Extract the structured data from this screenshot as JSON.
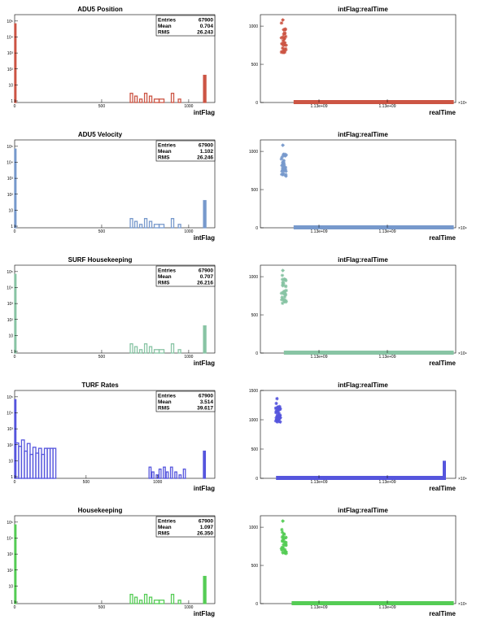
{
  "chart_data": [
    {
      "type": "histogram",
      "title": "ADU5 Position",
      "xlabel": "intFlag",
      "color": "#cc5544",
      "xlim": [
        0,
        1150
      ],
      "ylog": true,
      "xticks": [
        0,
        500,
        1000
      ],
      "yticks": [
        {
          "v": 1,
          "label": "1"
        },
        {
          "v": 10,
          "label": "10"
        },
        {
          "v": 100,
          "label": "10²"
        },
        {
          "v": 1000,
          "label": "10³"
        },
        {
          "v": 10000,
          "label": "10⁴"
        },
        {
          "v": 100000,
          "label": "10⁵"
        }
      ],
      "stats": {
        "entries_label": "Entries",
        "entries": "67900",
        "mean_label": "Mean",
        "mean": "0.704",
        "rms_label": "RMS",
        "rms": "26.243"
      },
      "bins": [
        {
          "x": 0,
          "w": 8,
          "v": 67000
        },
        {
          "x": 664,
          "w": 14,
          "v": 3
        },
        {
          "x": 690,
          "w": 14,
          "v": 2
        },
        {
          "x": 718,
          "w": 14,
          "v": 1.3
        },
        {
          "x": 746,
          "w": 14,
          "v": 3
        },
        {
          "x": 774,
          "w": 14,
          "v": 2
        },
        {
          "x": 802,
          "w": 28,
          "v": 1.3
        },
        {
          "x": 830,
          "w": 28,
          "v": 1.3
        },
        {
          "x": 900,
          "w": 14,
          "v": 3
        },
        {
          "x": 940,
          "w": 14,
          "v": 1.3
        },
        {
          "x": 1085,
          "w": 14,
          "v": 40
        }
      ],
      "filled": [
        0,
        1085
      ]
    },
    {
      "type": "scatter",
      "title": "intFlag:realTime",
      "xlabel": "realTime",
      "color": "#cc5544",
      "xlim": [
        0,
        1
      ],
      "ylim": [
        0,
        1150
      ],
      "yticks": [
        0,
        500,
        1000
      ],
      "xticks": [
        "1.13e+09",
        "1.13e+09"
      ],
      "exponent": "×10⁹",
      "cluster": {
        "x": 0.12,
        "ymin": 650,
        "ymax": 1080
      },
      "line": {
        "x0": 0.17,
        "x1": 0.99,
        "y": 0,
        "tail": false
      }
    },
    {
      "type": "histogram",
      "title": "ADU5 Velocity",
      "xlabel": "intFlag",
      "color": "#7799cc",
      "xlim": [
        0,
        1150
      ],
      "ylog": true,
      "xticks": [
        0,
        500,
        1000
      ],
      "yticks": [
        {
          "v": 1,
          "label": "1"
        },
        {
          "v": 10,
          "label": "10"
        },
        {
          "v": 100,
          "label": "10²"
        },
        {
          "v": 1000,
          "label": "10³"
        },
        {
          "v": 10000,
          "label": "10⁴"
        },
        {
          "v": 100000,
          "label": "10⁵"
        }
      ],
      "stats": {
        "entries_label": "Entries",
        "entries": "67900",
        "mean_label": "Mean",
        "mean": "1.102",
        "rms_label": "RMS",
        "rms": "26.246"
      },
      "bins": [
        {
          "x": 0,
          "w": 8,
          "v": 67000
        },
        {
          "x": 664,
          "w": 14,
          "v": 3
        },
        {
          "x": 690,
          "w": 14,
          "v": 2
        },
        {
          "x": 718,
          "w": 14,
          "v": 1.3
        },
        {
          "x": 746,
          "w": 14,
          "v": 3
        },
        {
          "x": 774,
          "w": 14,
          "v": 2
        },
        {
          "x": 802,
          "w": 28,
          "v": 1.3
        },
        {
          "x": 830,
          "w": 28,
          "v": 1.3
        },
        {
          "x": 900,
          "w": 14,
          "v": 3
        },
        {
          "x": 940,
          "w": 14,
          "v": 1.3
        },
        {
          "x": 1085,
          "w": 14,
          "v": 40
        }
      ],
      "filled": [
        0,
        1085
      ]
    },
    {
      "type": "scatter",
      "title": "intFlag:realTime",
      "xlabel": "realTime",
      "color": "#7799cc",
      "xlim": [
        0,
        1
      ],
      "ylim": [
        0,
        1150
      ],
      "yticks": [
        0,
        500,
        1000
      ],
      "xticks": [
        "1.13e+09",
        "1.13e+09"
      ],
      "exponent": "×10⁹",
      "cluster": {
        "x": 0.12,
        "ymin": 650,
        "ymax": 1080
      },
      "line": {
        "x0": 0.17,
        "x1": 0.99,
        "y": 0,
        "tail": false
      }
    },
    {
      "type": "histogram",
      "title": "SURF Housekeeping",
      "xlabel": "intFlag",
      "color": "#88c4a4",
      "xlim": [
        0,
        1150
      ],
      "ylog": true,
      "xticks": [
        0,
        500,
        1000
      ],
      "yticks": [
        {
          "v": 1,
          "label": "1"
        },
        {
          "v": 10,
          "label": "10"
        },
        {
          "v": 100,
          "label": "10²"
        },
        {
          "v": 1000,
          "label": "10³"
        },
        {
          "v": 10000,
          "label": "10⁴"
        },
        {
          "v": 100000,
          "label": "10⁵"
        }
      ],
      "stats": {
        "entries_label": "Entries",
        "entries": "67900",
        "mean_label": "Mean",
        "mean": "0.707",
        "rms_label": "RMS",
        "rms": "26.216"
      },
      "bins": [
        {
          "x": 0,
          "w": 8,
          "v": 67000
        },
        {
          "x": 664,
          "w": 14,
          "v": 3
        },
        {
          "x": 690,
          "w": 14,
          "v": 2
        },
        {
          "x": 718,
          "w": 14,
          "v": 1.3
        },
        {
          "x": 746,
          "w": 14,
          "v": 3
        },
        {
          "x": 774,
          "w": 14,
          "v": 2
        },
        {
          "x": 802,
          "w": 28,
          "v": 1.3
        },
        {
          "x": 830,
          "w": 28,
          "v": 1.3
        },
        {
          "x": 900,
          "w": 14,
          "v": 3
        },
        {
          "x": 940,
          "w": 14,
          "v": 1.3
        },
        {
          "x": 1085,
          "w": 14,
          "v": 40
        }
      ],
      "filled": [
        0,
        1085
      ]
    },
    {
      "type": "scatter",
      "title": "intFlag:realTime",
      "xlabel": "realTime",
      "color": "#88c4a4",
      "xlim": [
        0,
        1
      ],
      "ylim": [
        0,
        1150
      ],
      "yticks": [
        0,
        500,
        1000
      ],
      "xticks": [
        "1.13e+09",
        "1.13e+09"
      ],
      "exponent": "×10⁹",
      "cluster": {
        "x": 0.12,
        "ymin": 650,
        "ymax": 1080
      },
      "line": {
        "x0": 0.12,
        "x1": 0.99,
        "y": 0,
        "tail": false
      }
    },
    {
      "type": "histogram",
      "title": "TURF Rates",
      "xlabel": "intFlag",
      "color": "#5555dd",
      "xlim": [
        0,
        1400
      ],
      "ylog": true,
      "xticks": [
        0,
        500,
        1000
      ],
      "yticks": [
        {
          "v": 1,
          "label": "1"
        },
        {
          "v": 10,
          "label": "10"
        },
        {
          "v": 100,
          "label": "10²"
        },
        {
          "v": 1000,
          "label": "10³"
        },
        {
          "v": 10000,
          "label": "10⁴"
        },
        {
          "v": 100000,
          "label": "10⁵"
        }
      ],
      "stats": {
        "entries_label": "Entries",
        "entries": "67900",
        "mean_label": "Mean",
        "mean": "3.514",
        "rms_label": "RMS",
        "rms": "39.617"
      },
      "bins": [
        {
          "x": 0,
          "w": 8,
          "v": 67000
        },
        {
          "x": 8,
          "w": 20,
          "v": 130
        },
        {
          "x": 28,
          "w": 20,
          "v": 80
        },
        {
          "x": 48,
          "w": 20,
          "v": 200
        },
        {
          "x": 68,
          "w": 20,
          "v": 40
        },
        {
          "x": 88,
          "w": 20,
          "v": 120
        },
        {
          "x": 108,
          "w": 20,
          "v": 25
        },
        {
          "x": 128,
          "w": 20,
          "v": 70
        },
        {
          "x": 148,
          "w": 20,
          "v": 30
        },
        {
          "x": 168,
          "w": 20,
          "v": 60
        },
        {
          "x": 188,
          "w": 20,
          "v": 25
        },
        {
          "x": 208,
          "w": 20,
          "v": 60
        },
        {
          "x": 228,
          "w": 20,
          "v": 60
        },
        {
          "x": 248,
          "w": 20,
          "v": 60
        },
        {
          "x": 268,
          "w": 20,
          "v": 60
        },
        {
          "x": 940,
          "w": 14,
          "v": 4
        },
        {
          "x": 960,
          "w": 14,
          "v": 2
        },
        {
          "x": 990,
          "w": 14,
          "v": 1.3
        },
        {
          "x": 1010,
          "w": 14,
          "v": 3
        },
        {
          "x": 1040,
          "w": 14,
          "v": 4
        },
        {
          "x": 1060,
          "w": 14,
          "v": 2
        },
        {
          "x": 1090,
          "w": 14,
          "v": 4
        },
        {
          "x": 1120,
          "w": 14,
          "v": 2
        },
        {
          "x": 1150,
          "w": 14,
          "v": 1.3
        },
        {
          "x": 1180,
          "w": 14,
          "v": 3
        },
        {
          "x": 1320,
          "w": 14,
          "v": 40
        }
      ],
      "filled": [
        0,
        1320
      ]
    },
    {
      "type": "scatter",
      "title": "intFlag:realTime",
      "xlabel": "realTime",
      "color": "#5555dd",
      "xlim": [
        0,
        1
      ],
      "ylim": [
        0,
        1500
      ],
      "yticks": [
        0,
        500,
        1000,
        1500
      ],
      "xticks": [
        "1.13e+09",
        "1.13e+09"
      ],
      "exponent": "×10⁹",
      "cluster": {
        "x": 0.09,
        "ymin": 950,
        "ymax": 1360
      },
      "line": {
        "x0": 0.08,
        "x1": 0.95,
        "y": 0,
        "tail": true,
        "tail_ymax": 300
      }
    },
    {
      "type": "histogram",
      "title": "Housekeeping",
      "xlabel": "intFlag",
      "color": "#55cc55",
      "xlim": [
        0,
        1150
      ],
      "ylog": true,
      "xticks": [
        0,
        500,
        1000
      ],
      "yticks": [
        {
          "v": 1,
          "label": "1"
        },
        {
          "v": 10,
          "label": "10"
        },
        {
          "v": 100,
          "label": "10²"
        },
        {
          "v": 1000,
          "label": "10³"
        },
        {
          "v": 10000,
          "label": "10⁴"
        },
        {
          "v": 100000,
          "label": "10⁵"
        }
      ],
      "stats": {
        "entries_label": "Entries",
        "entries": "67900",
        "mean_label": "Mean",
        "mean": "1.097",
        "rms_label": "RMS",
        "rms": "26.350"
      },
      "bins": [
        {
          "x": 0,
          "w": 8,
          "v": 67000
        },
        {
          "x": 664,
          "w": 14,
          "v": 3
        },
        {
          "x": 690,
          "w": 14,
          "v": 2
        },
        {
          "x": 718,
          "w": 14,
          "v": 1.3
        },
        {
          "x": 746,
          "w": 14,
          "v": 3
        },
        {
          "x": 774,
          "w": 14,
          "v": 2
        },
        {
          "x": 802,
          "w": 28,
          "v": 1.3
        },
        {
          "x": 830,
          "w": 28,
          "v": 1.3
        },
        {
          "x": 900,
          "w": 14,
          "v": 3
        },
        {
          "x": 940,
          "w": 14,
          "v": 1.3
        },
        {
          "x": 1085,
          "w": 14,
          "v": 40
        }
      ],
      "filled": [
        0,
        1085
      ]
    },
    {
      "type": "scatter",
      "title": "intFlag:realTime",
      "xlabel": "realTime",
      "color": "#55cc55",
      "xlim": [
        0,
        1
      ],
      "ylim": [
        0,
        1150
      ],
      "yticks": [
        0,
        500,
        1000
      ],
      "xticks": [
        "1.13e+09",
        "1.13e+09"
      ],
      "exponent": "×10⁹",
      "cluster": {
        "x": 0.12,
        "ymin": 650,
        "ymax": 1080
      },
      "line": {
        "x0": 0.16,
        "x1": 0.99,
        "y": 0,
        "tail": false
      }
    }
  ]
}
